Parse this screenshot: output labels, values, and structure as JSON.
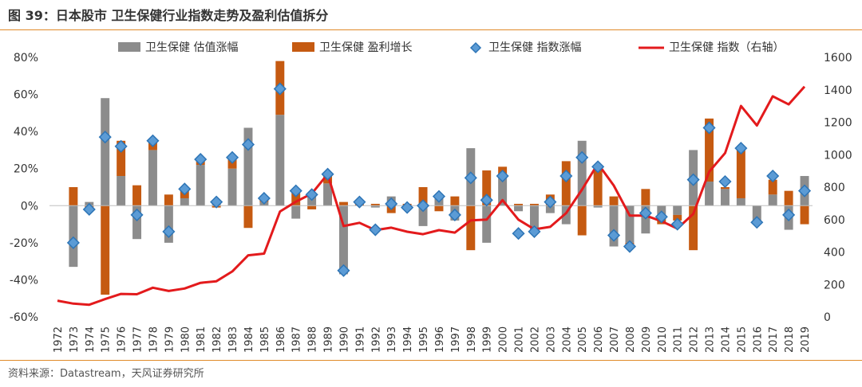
{
  "title": "图 39：日本股市 卫生保健行业指数走势及盈利估值拆分",
  "source": "资料来源：Datastream，天风证券研究所",
  "colors": {
    "valuation_bar": "#8c8c8c",
    "earnings_bar": "#c55a11",
    "marker_fill": "#5b9bd5",
    "marker_stroke": "#2e75b6",
    "index_line": "#e31a1c",
    "rule": "#e08a28"
  },
  "chart_data": {
    "type": "bar",
    "stacked": true,
    "categories": [
      "1972",
      "1973",
      "1974",
      "1975",
      "1976",
      "1977",
      "1978",
      "1979",
      "1980",
      "1981",
      "1982",
      "1983",
      "1984",
      "1985",
      "1986",
      "1987",
      "1988",
      "1989",
      "1990",
      "1991",
      "1992",
      "1993",
      "1994",
      "1995",
      "1996",
      "1997",
      "1998",
      "1999",
      "2000",
      "2001",
      "2002",
      "2003",
      "2004",
      "2005",
      "2006",
      "2007",
      "2008",
      "2009",
      "2010",
      "2011",
      "2012",
      "2013",
      "2014",
      "2015",
      "2016",
      "2017",
      "2018",
      "2019"
    ],
    "series": [
      {
        "name": "卫生保健 估值涨幅",
        "type": "bar",
        "axis": "left",
        "values": [
          null,
          -33,
          2,
          58,
          16,
          -18,
          30,
          -20,
          4,
          22,
          3,
          20,
          42,
          2,
          49,
          -7,
          6,
          12,
          -37,
          0,
          -1,
          5,
          -2,
          -11,
          6,
          -8,
          31,
          -20,
          17,
          -3,
          -15,
          -4,
          -10,
          35,
          -1,
          -22,
          -20,
          -15,
          -7,
          -5,
          30,
          13,
          9,
          4,
          -8,
          6,
          -13,
          16
        ]
      },
      {
        "name": "卫生保健 盈利增长",
        "type": "bar",
        "axis": "left",
        "values": [
          null,
          10,
          -1,
          -48,
          19,
          11,
          5,
          6,
          4,
          2,
          -1,
          6,
          -12,
          2,
          29,
          8,
          -2,
          5,
          2,
          2,
          1,
          -4,
          1,
          10,
          -3,
          5,
          -24,
          19,
          4,
          1,
          1,
          6,
          24,
          -16,
          21,
          5,
          -1,
          9,
          -3,
          -3,
          -24,
          34,
          1,
          28,
          0,
          8,
          8,
          -10
        ]
      },
      {
        "name": "卫生保健 指数涨幅",
        "type": "marker",
        "axis": "left",
        "values": [
          null,
          -20,
          -2,
          37,
          32,
          -5,
          35,
          -14,
          9,
          25,
          2,
          26,
          33,
          4,
          63,
          8,
          6,
          17,
          -35,
          2,
          -13,
          1,
          -1,
          0,
          5,
          -5,
          15,
          3,
          16,
          -15,
          -14,
          2,
          16,
          26,
          21,
          -16,
          -22,
          -4,
          -6,
          -10,
          14,
          42,
          13,
          31,
          -9,
          16,
          -5,
          8
        ]
      },
      {
        "name": "卫生保健 指数（右轴）",
        "type": "line",
        "axis": "right",
        "values": [
          100,
          82,
          75,
          110,
          142,
          140,
          180,
          160,
          175,
          210,
          220,
          280,
          380,
          390,
          650,
          710,
          760,
          880,
          560,
          580,
          535,
          550,
          525,
          510,
          535,
          520,
          595,
          600,
          720,
          600,
          540,
          555,
          640,
          785,
          945,
          810,
          625,
          625,
          590,
          545,
          635,
          895,
          1010,
          1300,
          1180,
          1360,
          1310,
          1420
        ]
      }
    ],
    "yLeft": {
      "min": -60,
      "max": 80,
      "step": 20,
      "tickLabels": [
        "-60%",
        "-40%",
        "-20%",
        "0%",
        "20%",
        "40%",
        "60%",
        "80%"
      ]
    },
    "yRight": {
      "min": 0,
      "max": 1600,
      "step": 200,
      "tickLabels": [
        "0",
        "200",
        "400",
        "600",
        "800",
        "1000",
        "1200",
        "1400",
        "1600"
      ]
    },
    "legend": {
      "position": "top"
    },
    "grid": false
  }
}
